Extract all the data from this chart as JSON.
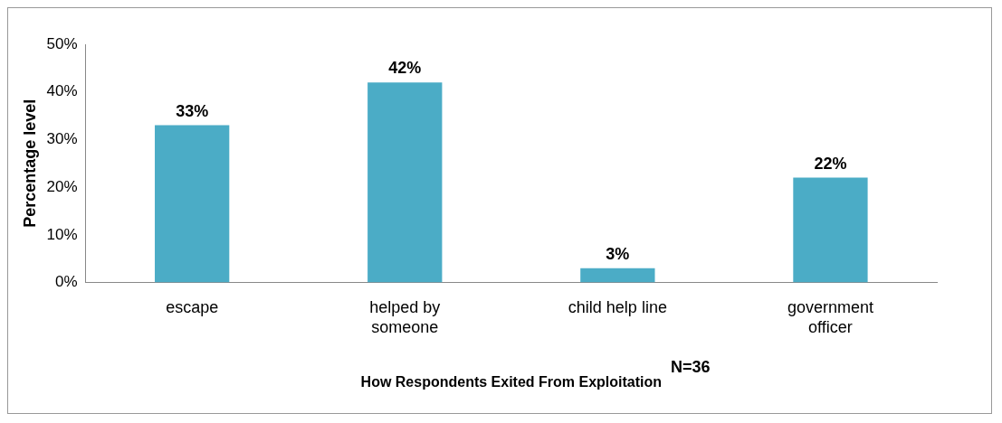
{
  "chart_data": {
    "type": "bar",
    "xlabel": "How Respondents Exited From Exploitation",
    "ylabel": "Percentage level",
    "annotations": [
      "N=36"
    ],
    "categories": [
      "escape",
      "helped by someone",
      "child help line",
      "government officer"
    ],
    "values": [
      33,
      42,
      3,
      22
    ],
    "value_labels": [
      "33%",
      "42%",
      "3%",
      "22%"
    ],
    "color": "#4bacc6",
    "ylim": [
      0,
      50
    ],
    "yticks": [
      {
        "value": 0,
        "label": "0%"
      },
      {
        "value": 10,
        "label": "10%"
      },
      {
        "value": 20,
        "label": "20%"
      },
      {
        "value": 30,
        "label": "30%"
      },
      {
        "value": 40,
        "label": "40%"
      },
      {
        "value": 50,
        "label": "50%"
      }
    ],
    "grid": false,
    "legend": false
  }
}
